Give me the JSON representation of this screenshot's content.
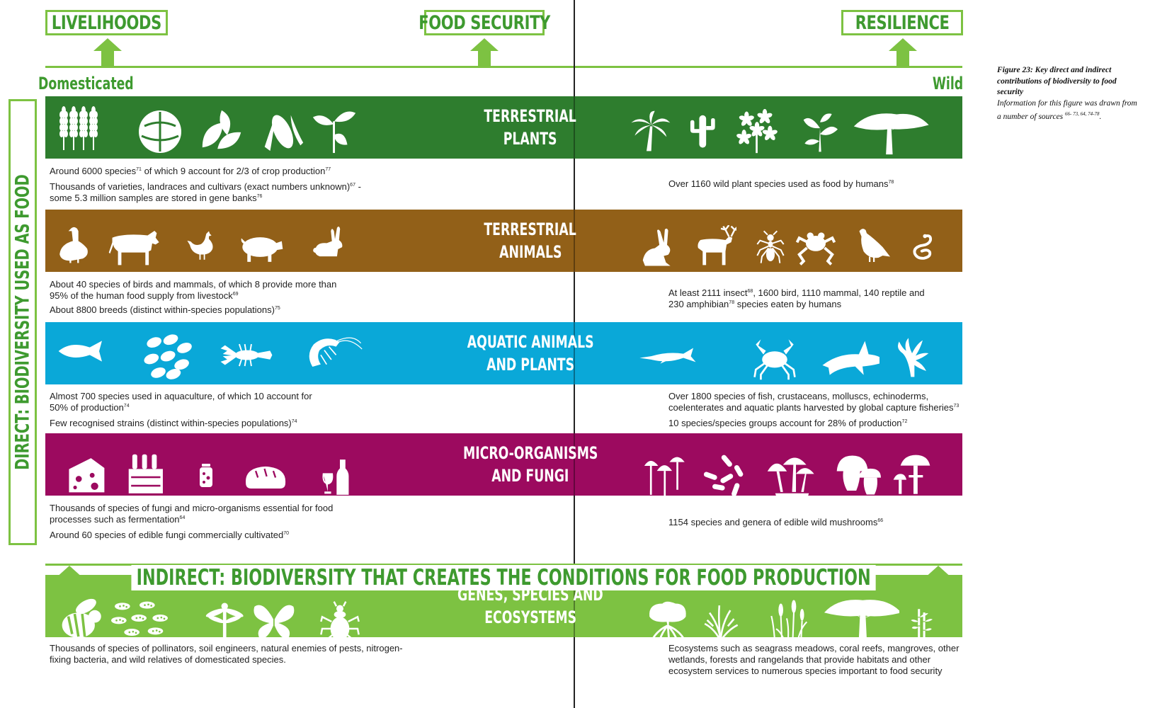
{
  "outcomes": {
    "livelihoods": "LIVELIHOODS",
    "food_security": "FOOD SECURITY",
    "resilience": "RESILIENCE"
  },
  "columns": {
    "left": "Domesticated",
    "right": "Wild"
  },
  "side_label": "DIRECT: BIODIVERSITY USED AS FOOD",
  "indirect_title": "INDIRECT: BIODIVERSITY THAT CREATES THE CONDITIONS FOR FOOD PRODUCTION",
  "caption": {
    "title": "Figure 23: Key direct and indirect contributions of biodiversity to food security",
    "body": "Information for this figure was drawn from a number of sources",
    "refs": "66- 73, 64, 74-78"
  },
  "colors": {
    "green_accent": "#7dc242",
    "text_green": "#3e9a2f",
    "terrestrial_plants": "#2e7d2e",
    "terrestrial_animals": "#926018",
    "aquatic": "#0aa8d8",
    "micro": "#9c0a5f",
    "genes": "#7dc242"
  },
  "bands": [
    {
      "label_line1": "TERRESTRIAL",
      "label_line2": "PLANTS",
      "left_icons": [
        "wheat-icon",
        "cabbage-icon",
        "leaves-icon",
        "corn-icon",
        "sprout-icon"
      ],
      "right_icons": [
        "palm-tree-icon",
        "cactus-icon",
        "wild-flower-icon",
        "wild-herb-icon",
        "acacia-tree-icon"
      ],
      "left_notes": [
        {
          "text": "Around 6000 species",
          "sup": "71",
          "text2": " of which 9 account for 2/3 of crop production",
          "sup2": "77"
        },
        {
          "text": "Thousands of varieties, landraces and cultivars (exact numbers unknown)",
          "sup": "67",
          "text2": " -",
          "sup2": ""
        },
        {
          "text": "some 5.3 million samples are stored in gene banks",
          "sup": "76",
          "text2": "",
          "sup2": ""
        }
      ],
      "right_notes": [
        {
          "text": "Over 1160 wild plant species used as food by humans",
          "sup": "78",
          "text2": "",
          "sup2": ""
        }
      ]
    },
    {
      "label_line1": "TERRESTRIAL",
      "label_line2": "ANIMALS",
      "left_icons": [
        "goose-icon",
        "cow-icon",
        "chicken-icon",
        "pig-icon",
        "rabbit-icon"
      ],
      "right_icons": [
        "hare-icon",
        "reindeer-icon",
        "ant-icon",
        "frog-icon",
        "pigeon-icon",
        "snake-icon"
      ],
      "left_notes": [
        {
          "text": "About 40 species of birds and mammals, of which 8 provide more than",
          "sup": "",
          "text2": "",
          "sup2": ""
        },
        {
          "text": "95% of the human food supply from livestock",
          "sup": "69",
          "text2": "",
          "sup2": ""
        },
        {
          "text": "About 8800 breeds (distinct within-species populations)",
          "sup": "75",
          "text2": "",
          "sup2": ""
        }
      ],
      "right_notes": [
        {
          "text": "At least 2111 insect",
          "sup": "68",
          "text2": ", 1600 bird, 1110 mammal, 140 reptile and",
          "sup2": ""
        },
        {
          "text": "230 amphibian",
          "sup": "78",
          "text2": " species eaten by humans",
          "sup2": ""
        }
      ]
    },
    {
      "label_line1": "AQUATIC ANIMALS",
      "label_line2": "AND PLANTS",
      "left_icons": [
        "fish-icon",
        "mussels-icon",
        "crayfish-icon",
        "shrimp-icon"
      ],
      "right_icons": [
        "sturgeon-icon",
        "crab-icon",
        "shark-icon",
        "seaweed-icon"
      ],
      "left_notes": [
        {
          "text": "Almost 700 species used in aquaculture, of which 10 account for",
          "sup": "",
          "text2": "",
          "sup2": ""
        },
        {
          "text": "50% of production",
          "sup": "74",
          "text2": "",
          "sup2": ""
        },
        {
          "text": "Few recognised strains (distinct within-species populations)",
          "sup": "74",
          "text2": "",
          "sup2": ""
        }
      ],
      "right_notes": [
        {
          "text": "Over 1800 species of fish, crustaceans, molluscs, echinoderms,",
          "sup": "",
          "text2": "",
          "sup2": ""
        },
        {
          "text": "coelenterates and aquatic plants harvested by global capture fisheries",
          "sup": "73",
          "text2": "",
          "sup2": ""
        },
        {
          "text": "10 species/species groups account for 28% of production",
          "sup": "72",
          "text2": "",
          "sup2": ""
        }
      ]
    },
    {
      "label_line1": "MICRO-ORGANISMS",
      "label_line2": "AND FUNGI",
      "left_icons": [
        "cheese-icon",
        "beer-crate-icon",
        "pickle-jar-icon",
        "bread-icon",
        "wine-icon"
      ],
      "right_icons": [
        "small-mushrooms-icon",
        "bacteria-icon",
        "mushroom-cluster-icon",
        "porcini-icon",
        "parasol-mushroom-icon"
      ],
      "left_notes": [
        {
          "text": "Thousands of species of fungi and micro-organisms essential for food",
          "sup": "",
          "text2": "",
          "sup2": ""
        },
        {
          "text": "processes such as fermentation",
          "sup": "64",
          "text2": "",
          "sup2": ""
        },
        {
          "text": "Around 60 species of edible fungi commercially cultivated",
          "sup": "70",
          "text2": "",
          "sup2": ""
        }
      ],
      "right_notes": [
        {
          "text": "1154 species and genera of edible wild mushrooms",
          "sup": "66",
          "text2": "",
          "sup2": ""
        }
      ]
    },
    {
      "label_line1": "GENES, SPECIES AND",
      "label_line2": "ECOSYSTEMS",
      "left_icons": [
        "bee-icon",
        "soil-microbes-icon",
        "dragonfly-icon",
        "butterfly-icon",
        "beetle-icon"
      ],
      "right_icons": [
        "mangrove-icon",
        "coral-icon",
        "reeds-icon",
        "savanna-tree-icon",
        "bamboo-icon"
      ],
      "left_notes": [
        {
          "text": "Thousands of species of pollinators, soil engineers, natural enemies of pests, nitrogen-",
          "sup": "",
          "text2": "",
          "sup2": ""
        },
        {
          "text": "fixing bacteria, and wild relatives of domesticated species.",
          "sup": "",
          "text2": "",
          "sup2": ""
        }
      ],
      "right_notes": [
        {
          "text": "Ecosystems such as seagrass meadows, coral reefs, mangroves, other",
          "sup": "",
          "text2": "",
          "sup2": ""
        },
        {
          "text": "wetlands, forests and rangelands that provide habitats and other",
          "sup": "",
          "text2": "",
          "sup2": ""
        },
        {
          "text": "ecosystem services to numerous species important to food security",
          "sup": "",
          "text2": "",
          "sup2": ""
        }
      ]
    }
  ]
}
